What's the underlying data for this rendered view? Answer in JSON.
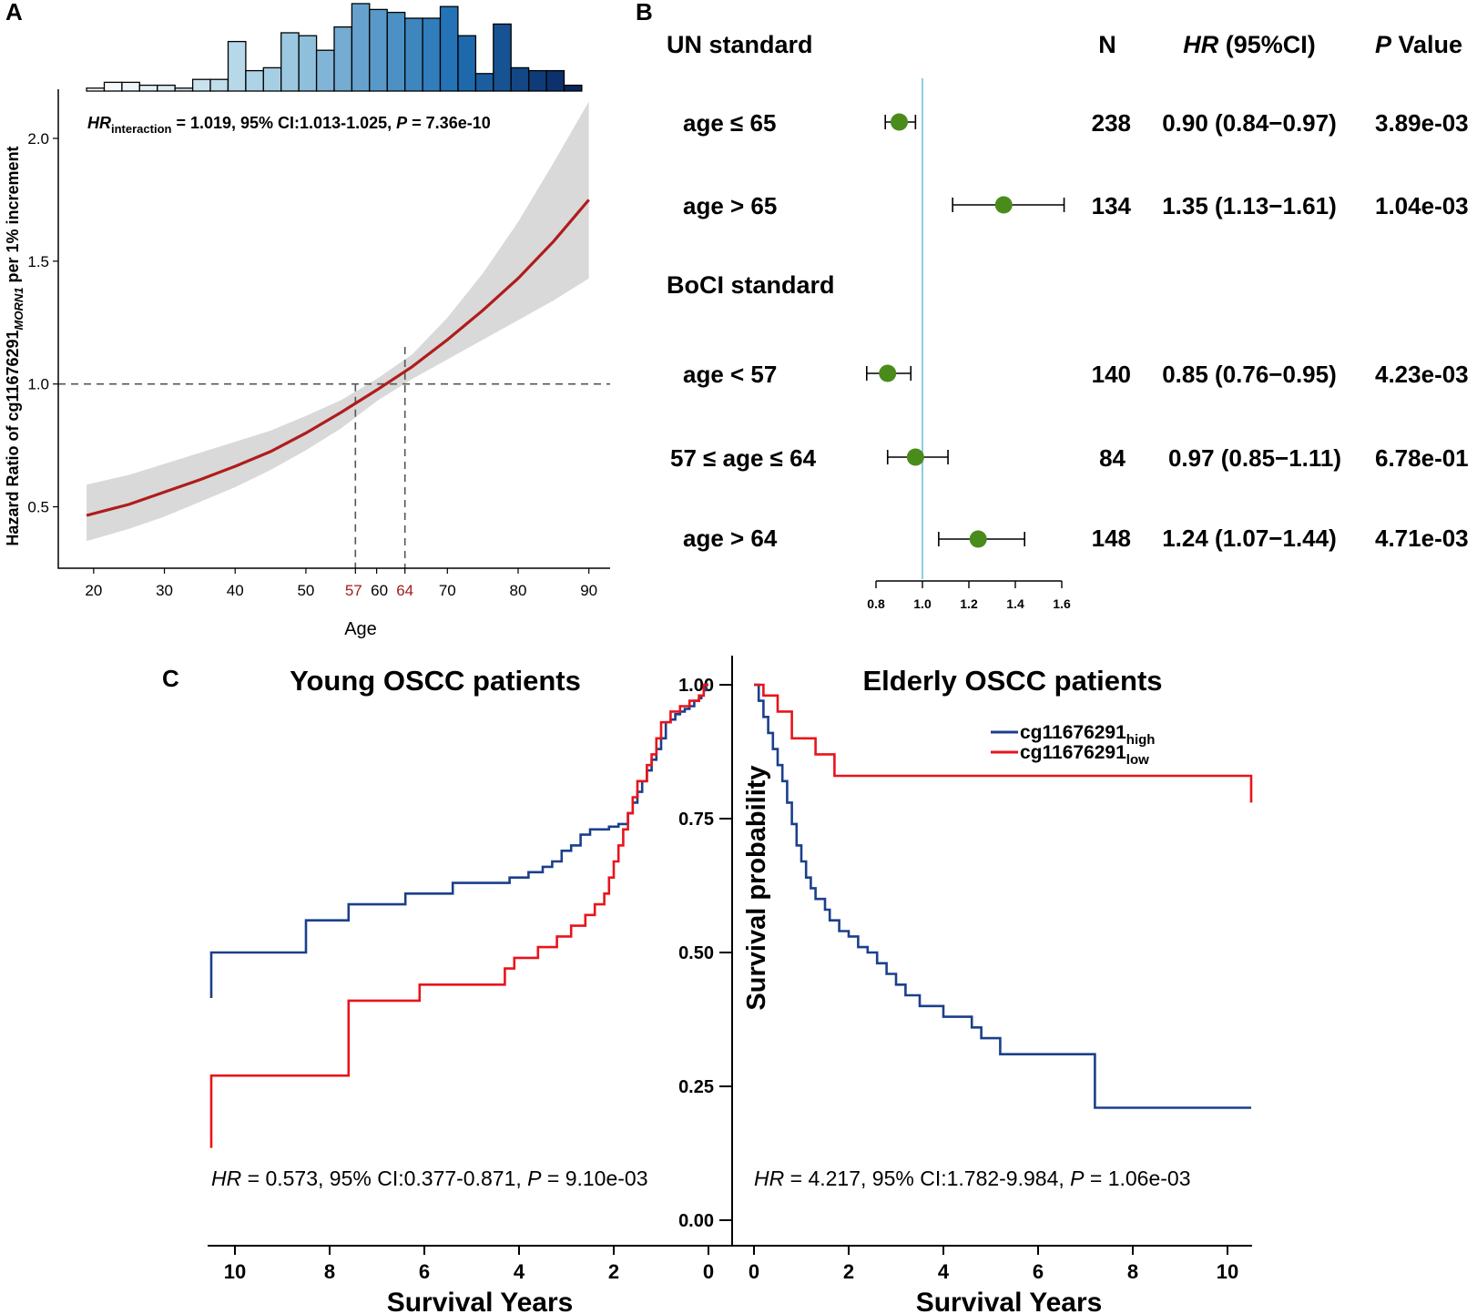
{
  "chart_data": [
    {
      "panel": "A",
      "type": "line",
      "title": "",
      "annotation": {
        "hr_italic": "HR",
        "hr_sub": "interaction",
        "text": " = 1.019, 95% CI:1.013-1.025, ",
        "p_italic": "P",
        "p_text": " = 7.36e-10"
      },
      "xlabel": "Age",
      "ylabel_main": "Hazard Ratio of cg11676291",
      "ylabel_sub": "MORN1",
      "ylabel_tail": " per 1% increment",
      "xlim": [
        15,
        93
      ],
      "ylim": [
        0.25,
        2.2
      ],
      "x_ticks": [
        20,
        30,
        40,
        50,
        60,
        70,
        80,
        90
      ],
      "x_ticks_highlight": [
        57,
        64
      ],
      "y_ticks": [
        0.5,
        1.0,
        1.5,
        2.0
      ],
      "y_tick_labels": [
        "0.5",
        "1.0",
        "1.5",
        "2.0"
      ],
      "reference_line": 1.0,
      "cutpoints": [
        57,
        64
      ],
      "curve": {
        "x": [
          19,
          25,
          30,
          35,
          40,
          45,
          50,
          55,
          60,
          65,
          70,
          75,
          80,
          85,
          90
        ],
        "hr": [
          0.465,
          0.51,
          0.56,
          0.61,
          0.665,
          0.725,
          0.8,
          0.885,
          0.975,
          1.07,
          1.18,
          1.3,
          1.43,
          1.58,
          1.75
        ],
        "lower": [
          0.36,
          0.41,
          0.46,
          0.52,
          0.58,
          0.65,
          0.73,
          0.82,
          0.93,
          1.02,
          1.1,
          1.18,
          1.26,
          1.34,
          1.43
        ],
        "upper": [
          0.59,
          0.63,
          0.675,
          0.72,
          0.765,
          0.81,
          0.87,
          0.935,
          1.02,
          1.12,
          1.27,
          1.45,
          1.66,
          1.9,
          2.15
        ]
      },
      "histogram": {
        "bin_start": 19,
        "bin_width": 2.5,
        "counts": [
          1,
          3,
          3,
          2,
          2,
          1,
          4,
          4,
          17,
          7,
          8,
          20,
          19,
          14,
          22,
          30,
          28,
          27,
          25,
          25,
          29,
          19,
          6,
          23,
          8,
          7,
          7,
          2
        ]
      }
    },
    {
      "panel": "B",
      "type": "forest",
      "columns": {
        "n": "N",
        "hr_italic": "HR",
        "hr_rest": " (95%CI)",
        "p_italic": "P",
        "p_rest": " Value"
      },
      "x_axis": {
        "min": 0.8,
        "max": 1.6,
        "ticks": [
          0.8,
          1.0,
          1.2,
          1.4,
          1.6
        ],
        "tick_labels": [
          "0.8",
          "1.0",
          "1.2",
          "1.4",
          "1.6"
        ],
        "reference": 1.0
      },
      "groups": [
        {
          "title": "UN standard",
          "rows": [
            {
              "label": "age ≤ 65",
              "n": "238",
              "hr": 0.9,
              "lower": 0.84,
              "upper": 0.97,
              "hr_text": "0.90 (0.84−0.97)",
              "p": "3.89e-03"
            },
            {
              "label": "age > 65",
              "n": "134",
              "hr": 1.35,
              "lower": 1.13,
              "upper": 1.61,
              "hr_text": "1.35 (1.13−1.61)",
              "p": "1.04e-03"
            }
          ]
        },
        {
          "title": "BoCI standard",
          "rows": [
            {
              "label": "age < 57",
              "n": "140",
              "hr": 0.85,
              "lower": 0.76,
              "upper": 0.95,
              "hr_text": "0.85 (0.76−0.95)",
              "p": "4.23e-03"
            },
            {
              "label": "57 ≤ age ≤ 64",
              "n": "84",
              "hr": 0.97,
              "lower": 0.85,
              "upper": 1.11,
              "hr_text": "0.97 (0.85−1.11)",
              "p": "6.78e-01"
            },
            {
              "label": "age > 64",
              "n": "148",
              "hr": 1.24,
              "lower": 1.07,
              "upper": 1.44,
              "hr_text": "1.24 (1.07−1.44)",
              "p": "4.71e-03"
            }
          ]
        }
      ]
    },
    {
      "panel": "C",
      "type": "line",
      "subtype": "kaplan-meier",
      "ylabel": "Survival probability",
      "y_ticks": [
        0.0,
        0.25,
        0.5,
        0.75,
        1.0
      ],
      "y_tick_labels": [
        "0.00",
        "0.25",
        "0.50",
        "0.75",
        "1.00"
      ],
      "legend": [
        {
          "main": "cg11676291",
          "sub": "high",
          "color": "#1b3f8b"
        },
        {
          "main": "cg11676291",
          "sub": "low",
          "color": "#e8141b"
        }
      ],
      "left": {
        "title": "Young OSCC patients",
        "xlabel": "Survival Years",
        "xlim": [
          10.5,
          0
        ],
        "x_ticks": [
          10,
          8,
          6,
          4,
          2,
          0
        ],
        "annotation": {
          "hr_italic": "HR",
          "text": " = 0.573, 95% CI:0.377-0.871, ",
          "p_italic": "P",
          "p_text": " = 9.10e-03"
        },
        "series": [
          {
            "name": "high",
            "color": "#1b3f8b",
            "t": [
              0,
              0.05,
              0.1,
              0.15,
              0.2,
              0.3,
              0.4,
              0.5,
              0.6,
              0.7,
              0.8,
              0.9,
              1.0,
              1.1,
              1.2,
              1.3,
              1.4,
              1.5,
              1.6,
              1.7,
              1.9,
              2.1,
              2.5,
              2.7,
              2.9,
              3.1,
              3.3,
              3.5,
              3.8,
              4.2,
              5.4,
              6.4,
              7.6,
              8.5,
              10.5
            ],
            "s": [
              1.0,
              0.99,
              0.98,
              0.975,
              0.97,
              0.96,
              0.955,
              0.95,
              0.945,
              0.935,
              0.93,
              0.9,
              0.88,
              0.86,
              0.84,
              0.82,
              0.8,
              0.78,
              0.76,
              0.74,
              0.735,
              0.73,
              0.72,
              0.7,
              0.69,
              0.67,
              0.66,
              0.65,
              0.64,
              0.63,
              0.61,
              0.59,
              0.56,
              0.5,
              0.415
            ]
          },
          {
            "name": "low",
            "color": "#e8141b",
            "t": [
              0,
              0.1,
              0.2,
              0.4,
              0.6,
              0.8,
              1.0,
              1.1,
              1.2,
              1.3,
              1.5,
              1.6,
              1.7,
              1.8,
              1.9,
              2.0,
              2.1,
              2.2,
              2.4,
              2.6,
              2.9,
              3.2,
              3.6,
              4.1,
              4.3,
              6.1,
              7.6,
              10.5
            ],
            "s": [
              1.0,
              0.98,
              0.97,
              0.96,
              0.95,
              0.93,
              0.9,
              0.87,
              0.85,
              0.82,
              0.79,
              0.76,
              0.73,
              0.7,
              0.67,
              0.64,
              0.61,
              0.59,
              0.57,
              0.55,
              0.53,
              0.51,
              0.49,
              0.47,
              0.44,
              0.41,
              0.27,
              0.135
            ]
          }
        ]
      },
      "right": {
        "title": "Elderly OSCC patients",
        "xlabel": "Survival Years",
        "xlim": [
          0,
          10.5
        ],
        "x_ticks": [
          0,
          2,
          4,
          6,
          8,
          10
        ],
        "annotation": {
          "hr_italic": "HR",
          "text": " = 4.217, 95% CI:1.782-9.984, ",
          "p_italic": "P",
          "p_text": " = 1.06e-03"
        },
        "series": [
          {
            "name": "high",
            "color": "#1b3f8b",
            "t": [
              0,
              0.1,
              0.2,
              0.3,
              0.4,
              0.5,
              0.6,
              0.7,
              0.8,
              0.9,
              1.0,
              1.1,
              1.2,
              1.3,
              1.5,
              1.6,
              1.8,
              2.0,
              2.2,
              2.4,
              2.6,
              2.8,
              3.0,
              3.2,
              3.5,
              4.0,
              4.4,
              4.6,
              4.8,
              5.2,
              7.2,
              10.5
            ],
            "s": [
              1.0,
              0.97,
              0.94,
              0.91,
              0.88,
              0.85,
              0.82,
              0.78,
              0.74,
              0.7,
              0.67,
              0.64,
              0.62,
              0.6,
              0.58,
              0.56,
              0.54,
              0.53,
              0.51,
              0.5,
              0.48,
              0.46,
              0.44,
              0.42,
              0.4,
              0.38,
              0.38,
              0.36,
              0.34,
              0.31,
              0.21,
              0.21
            ]
          },
          {
            "name": "low",
            "color": "#e8141b",
            "t": [
              0,
              0.2,
              0.5,
              0.8,
              1.3,
              1.7,
              10.5
            ],
            "s": [
              1.0,
              0.98,
              0.95,
              0.9,
              0.87,
              0.83,
              0.78
            ]
          }
        ]
      }
    }
  ]
}
